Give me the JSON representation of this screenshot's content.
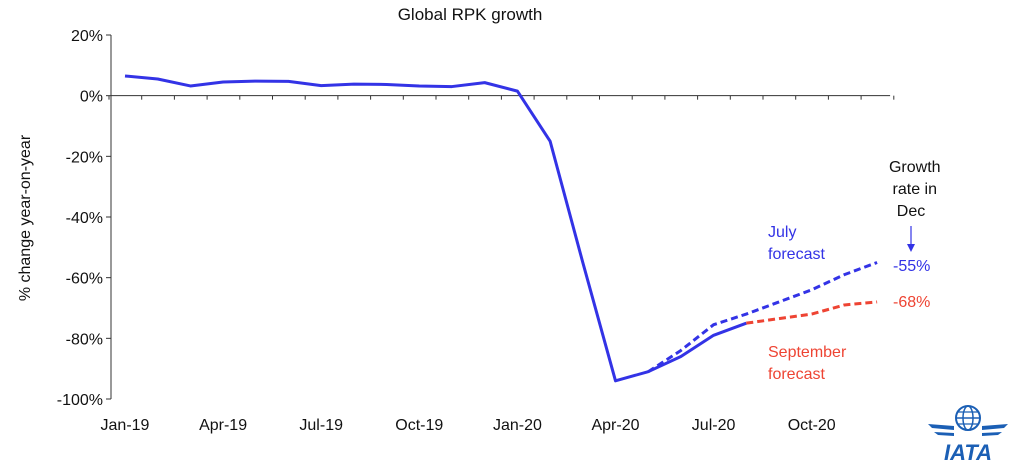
{
  "chart_data": {
    "type": "line",
    "title": "Global RPK growth",
    "ylabel": "% change year-on-year",
    "xlabel": "",
    "ylim": [
      -100,
      20
    ],
    "y_ticks": [
      20,
      0,
      -20,
      -40,
      -60,
      -80,
      -100
    ],
    "y_tick_labels": [
      "20%",
      "0%",
      "-20%",
      "-40%",
      "-60%",
      "-80%",
      "-100%"
    ],
    "x_ticks": [
      0,
      3,
      6,
      9,
      12,
      15,
      18,
      21
    ],
    "x_tick_labels": [
      "Jan-19",
      "Apr-19",
      "Jul-19",
      "Oct-19",
      "Jan-20",
      "Apr-20",
      "Jul-20",
      "Oct-20"
    ],
    "x_range": [
      0,
      23
    ],
    "grid": false,
    "series": [
      {
        "name": "",
        "style": "solid",
        "color": "#3333e6",
        "x": [
          0,
          1,
          2,
          3,
          4,
          5,
          6,
          7,
          8,
          9,
          10,
          11,
          12,
          13,
          14,
          15,
          16,
          17,
          18,
          19
        ],
        "y": [
          6.5,
          5.5,
          3.2,
          4.5,
          4.8,
          4.7,
          3.3,
          3.8,
          3.7,
          3.2,
          3.0,
          4.3,
          1.5,
          -15,
          -55,
          -94,
          -91,
          -86,
          -79,
          -75
        ]
      },
      {
        "name": "July forecast",
        "style": "dashed",
        "color": "#3333e6",
        "x": [
          16,
          17,
          18,
          19,
          20,
          21,
          22,
          23
        ],
        "y": [
          -91,
          -84,
          -75.5,
          -72,
          -68,
          -64,
          -59,
          -55
        ]
      },
      {
        "name": "September forecast",
        "style": "dashed",
        "color": "#ee4433",
        "x": [
          19,
          20,
          21,
          22,
          23
        ],
        "y": [
          -75,
          -73.5,
          -72,
          -69,
          -68
        ]
      }
    ],
    "annotations": {
      "growth_header": [
        "Growth",
        "rate in",
        "Dec"
      ],
      "july_label": [
        "July",
        "forecast"
      ],
      "september_label": [
        "September",
        "forecast"
      ],
      "july_value": "-55%",
      "september_value": "-68%"
    }
  },
  "logo": {
    "text": "IATA"
  },
  "colors": {
    "actual": "#3333e6",
    "july": "#3333e6",
    "september": "#ee4433",
    "axis": "#333333",
    "arrow": "#3333e6",
    "logo": "#1b5fb5"
  }
}
